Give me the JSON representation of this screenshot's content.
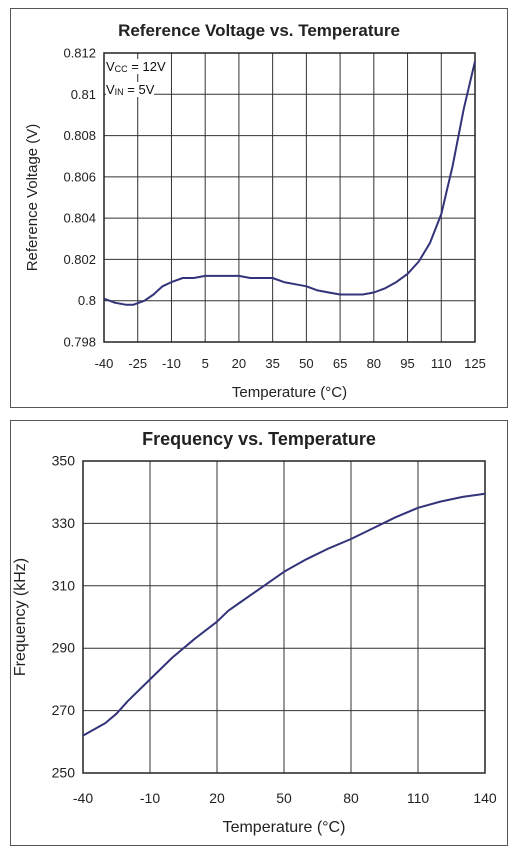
{
  "chart_data": [
    {
      "type": "line",
      "title": "Reference Voltage vs. Temperature",
      "xlabel": "Temperature (°C)",
      "ylabel": "Reference Voltage (V)",
      "xlim": [
        -40,
        125
      ],
      "ylim": [
        0.798,
        0.812
      ],
      "x_ticks": [
        -40,
        -25,
        -10,
        5,
        20,
        35,
        50,
        65,
        80,
        95,
        110,
        125
      ],
      "x_tick_labels": [
        "-40",
        "-25",
        "-10",
        "5",
        "20",
        "35",
        "50",
        "65",
        "80",
        "95",
        "110",
        "125"
      ],
      "y_ticks": [
        0.798,
        0.8,
        0.802,
        0.804,
        0.806,
        0.808,
        0.81,
        0.812
      ],
      "y_tick_labels": [
        "0.798",
        "0.8",
        "0.802",
        "0.804",
        "0.806",
        "0.808",
        "0.81",
        "0.812"
      ],
      "grid": true,
      "line_color": "#33337a",
      "annotations": [
        {
          "main": "V",
          "sub": "CC",
          "rest": " = 12V"
        },
        {
          "main": "V",
          "sub": "IN",
          "rest": " = 5V"
        }
      ],
      "series": [
        {
          "x": [
            -40,
            -35,
            -30,
            -27,
            -22,
            -18,
            -14,
            -10,
            -5,
            0,
            5,
            10,
            15,
            20,
            25,
            30,
            35,
            40,
            45,
            50,
            55,
            60,
            65,
            70,
            75,
            80,
            85,
            90,
            95,
            100,
            105,
            110,
            115,
            120,
            125
          ],
          "y": [
            0.8001,
            0.7999,
            0.7998,
            0.7998,
            0.8,
            0.8003,
            0.8007,
            0.8009,
            0.8011,
            0.8011,
            0.8012,
            0.8012,
            0.8012,
            0.8012,
            0.8011,
            0.8011,
            0.8011,
            0.8009,
            0.8008,
            0.8007,
            0.8005,
            0.8004,
            0.8003,
            0.8003,
            0.8003,
            0.8004,
            0.8006,
            0.8009,
            0.8013,
            0.8019,
            0.8028,
            0.8042,
            0.8065,
            0.8093,
            0.8116
          ]
        }
      ]
    },
    {
      "type": "line",
      "title": "Frequency vs. Temperature",
      "xlabel": "Temperature (°C)",
      "ylabel": "Frequency (kHz)",
      "xlim": [
        -40,
        140
      ],
      "ylim": [
        250,
        350
      ],
      "x_ticks": [
        -40,
        -10,
        20,
        50,
        80,
        110,
        140
      ],
      "x_tick_labels": [
        "-40",
        "-10",
        "20",
        "50",
        "80",
        "110",
        "140"
      ],
      "y_ticks": [
        250,
        270,
        290,
        310,
        330,
        350
      ],
      "y_tick_labels": [
        "250",
        "270",
        "290",
        "310",
        "330",
        "350"
      ],
      "grid": true,
      "line_color": "#33337a",
      "series": [
        {
          "x": [
            -40,
            -30,
            -25,
            -20,
            -10,
            0,
            10,
            20,
            25,
            30,
            40,
            50,
            60,
            70,
            80,
            90,
            100,
            110,
            120,
            130,
            140
          ],
          "y": [
            262,
            266,
            269,
            273,
            280,
            287,
            293,
            298.5,
            302,
            304.5,
            309.5,
            314.5,
            318.5,
            322,
            325,
            328.5,
            332,
            335,
            337,
            338.5,
            339.5
          ]
        }
      ]
    }
  ]
}
